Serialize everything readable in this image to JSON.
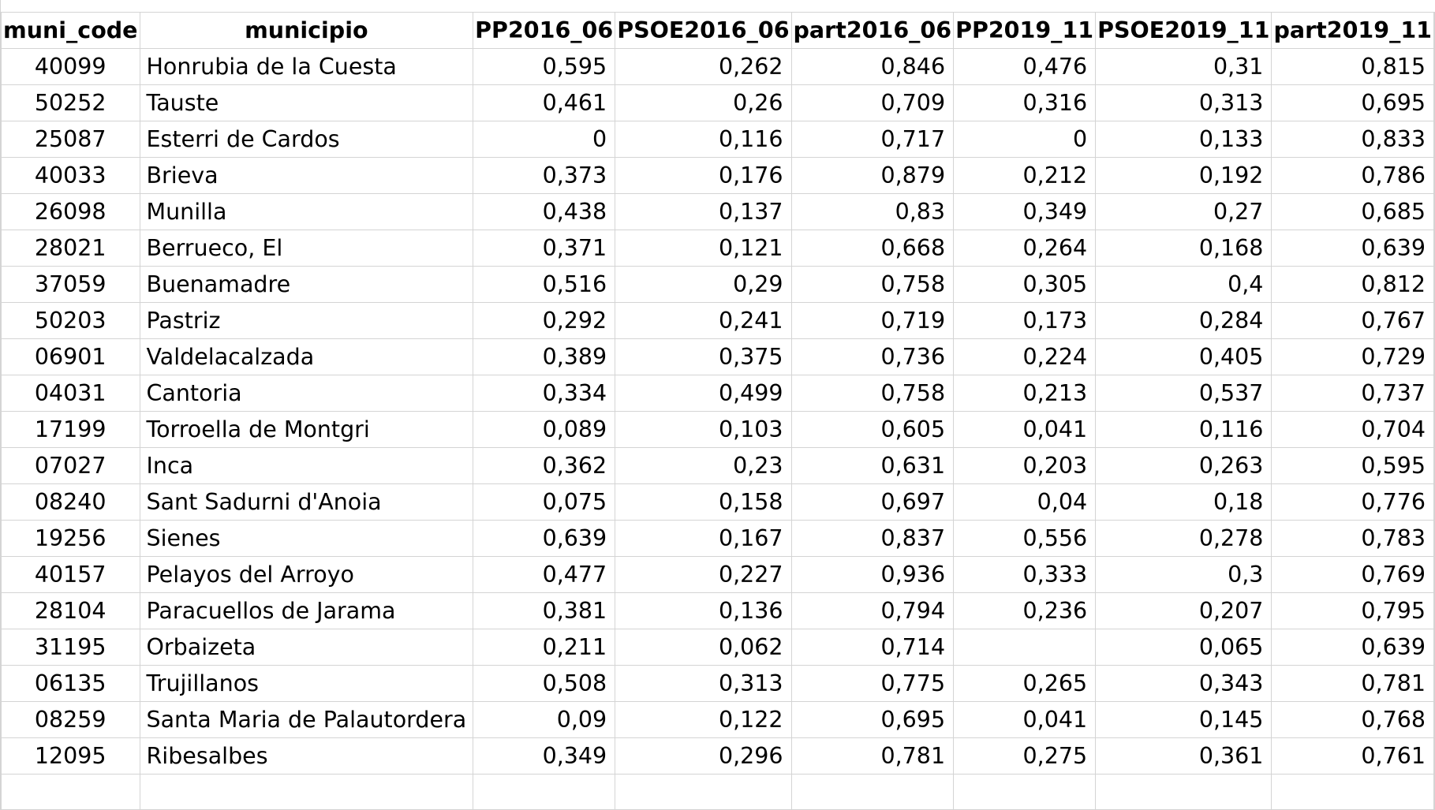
{
  "headers": [
    "muni_code",
    "municipio",
    "PP2016_06",
    "PSOE2016_06",
    "part2016_06",
    "PP2019_11",
    "PSOE2019_11",
    "part2019_11"
  ],
  "rows": [
    [
      "40099",
      "Honrubia de la Cuesta",
      "0,595",
      "0,262",
      "0,846",
      "0,476",
      "0,31",
      "0,815"
    ],
    [
      "50252",
      "Tauste",
      "0,461",
      "0,26",
      "0,709",
      "0,316",
      "0,313",
      "0,695"
    ],
    [
      "25087",
      "Esterri de Cardos",
      "0",
      "0,116",
      "0,717",
      "0",
      "0,133",
      "0,833"
    ],
    [
      "40033",
      "Brieva",
      "0,373",
      "0,176",
      "0,879",
      "0,212",
      "0,192",
      "0,786"
    ],
    [
      "26098",
      "Munilla",
      "0,438",
      "0,137",
      "0,83",
      "0,349",
      "0,27",
      "0,685"
    ],
    [
      "28021",
      "Berrueco, El",
      "0,371",
      "0,121",
      "0,668",
      "0,264",
      "0,168",
      "0,639"
    ],
    [
      "37059",
      "Buenamadre",
      "0,516",
      "0,29",
      "0,758",
      "0,305",
      "0,4",
      "0,812"
    ],
    [
      "50203",
      "Pastriz",
      "0,292",
      "0,241",
      "0,719",
      "0,173",
      "0,284",
      "0,767"
    ],
    [
      "06901",
      "Valdelacalzada",
      "0,389",
      "0,375",
      "0,736",
      "0,224",
      "0,405",
      "0,729"
    ],
    [
      "04031",
      "Cantoria",
      "0,334",
      "0,499",
      "0,758",
      "0,213",
      "0,537",
      "0,737"
    ],
    [
      "17199",
      "Torroella de Montgri",
      "0,089",
      "0,103",
      "0,605",
      "0,041",
      "0,116",
      "0,704"
    ],
    [
      "07027",
      "Inca",
      "0,362",
      "0,23",
      "0,631",
      "0,203",
      "0,263",
      "0,595"
    ],
    [
      "08240",
      "Sant Sadurni d'Anoia",
      "0,075",
      "0,158",
      "0,697",
      "0,04",
      "0,18",
      "0,776"
    ],
    [
      "19256",
      "Sienes",
      "0,639",
      "0,167",
      "0,837",
      "0,556",
      "0,278",
      "0,783"
    ],
    [
      "40157",
      "Pelayos del Arroyo",
      "0,477",
      "0,227",
      "0,936",
      "0,333",
      "0,3",
      "0,769"
    ],
    [
      "28104",
      "Paracuellos de Jarama",
      "0,381",
      "0,136",
      "0,794",
      "0,236",
      "0,207",
      "0,795"
    ],
    [
      "31195",
      "Orbaizeta",
      "0,211",
      "0,062",
      "0,714",
      "",
      "0,065",
      "0,639"
    ],
    [
      "06135",
      "Trujillanos",
      "0,508",
      "0,313",
      "0,775",
      "0,265",
      "0,343",
      "0,781"
    ],
    [
      "08259",
      "Santa Maria de Palautordera",
      "0,09",
      "0,122",
      "0,695",
      "0,041",
      "0,145",
      "0,768"
    ],
    [
      "12095",
      "Ribesalbes",
      "0,349",
      "0,296",
      "0,781",
      "0,275",
      "0,361",
      "0,761"
    ]
  ]
}
